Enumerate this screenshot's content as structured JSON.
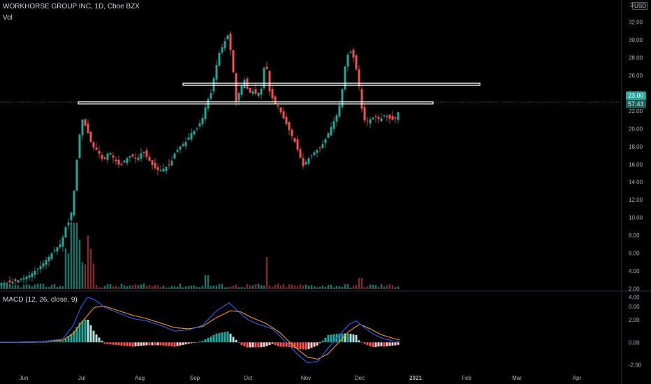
{
  "header": {
    "symbol_line": "WORKHORSE GROUP INC, 1D, Cboe BZX",
    "vol_label": "Vol",
    "macd_label": "MACD (12, 26, close, 9)",
    "currency": "USD",
    "cut_off_axis_label": "3"
  },
  "price_badges": {
    "last_price": "23.00",
    "countdown": "57:43"
  },
  "colors": {
    "up": "#26a69a",
    "down": "#ef5350",
    "macd_line": "#2962ff",
    "signal_line": "#ff9800",
    "hist_pos_strong": "#26a69a",
    "hist_pos_weak": "#b2dfdb",
    "hist_neg_strong": "#ff5252",
    "hist_neg_weak": "#ffcdd2",
    "background": "#000000"
  },
  "chart_data": [
    {
      "type": "candlestick",
      "title": "WORKHORSE GROUP INC, 1D, Cboe BZX",
      "x_axis_ticks": [
        "Jun",
        "Jul",
        "Aug",
        "Sep",
        "Oct",
        "Nov",
        "Dec",
        "2021",
        "Feb",
        "Mar",
        "Apr"
      ],
      "y_axis_ticks": [
        "32.00",
        "30.00",
        "28.00",
        "26.00",
        "24.00",
        "22.00",
        "20.00",
        "18.00",
        "16.00",
        "14.00",
        "12.00",
        "10.00",
        "8.00",
        "6.00",
        "4.00",
        "2.00",
        "0.00"
      ],
      "ylim": [
        0,
        33
      ],
      "last_price": 23.0,
      "horizontal_levels": [
        25.0,
        22.9
      ],
      "series": [
        {
          "name": "price_path",
          "points": [
            [
              0,
              2.6
            ],
            [
              14,
              2.7
            ],
            [
              28,
              3.0
            ],
            [
              42,
              3.5
            ],
            [
              56,
              4.4
            ],
            [
              64,
              5.0
            ],
            [
              72,
              5.8
            ],
            [
              80,
              6.5
            ],
            [
              86,
              7.0
            ],
            [
              90,
              7.8
            ],
            [
              95,
              9.2
            ],
            [
              100,
              9.6
            ],
            [
              104,
              11.5
            ],
            [
              108,
              14.5
            ],
            [
              112,
              18.5
            ],
            [
              118,
              21.0
            ],
            [
              124,
              20.0
            ],
            [
              132,
              18.0
            ],
            [
              140,
              17.5
            ],
            [
              148,
              16.3
            ],
            [
              156,
              17.5
            ],
            [
              164,
              16.5
            ],
            [
              172,
              15.8
            ],
            [
              180,
              16.6
            ],
            [
              188,
              17.0
            ],
            [
              196,
              16.5
            ],
            [
              204,
              17.5
            ],
            [
              212,
              16.6
            ],
            [
              220,
              15.7
            ],
            [
              228,
              15.2
            ],
            [
              236,
              15.6
            ],
            [
              244,
              16.0
            ],
            [
              250,
              17.2
            ],
            [
              258,
              18.0
            ],
            [
              266,
              18.5
            ],
            [
              274,
              19.5
            ],
            [
              282,
              20.0
            ],
            [
              290,
              21.2
            ],
            [
              296,
              23.0
            ],
            [
              302,
              24.0
            ],
            [
              308,
              26.5
            ],
            [
              314,
              28.5
            ],
            [
              320,
              29.5
            ],
            [
              326,
              30.5
            ],
            [
              332,
              28.0
            ],
            [
              338,
              23.0
            ],
            [
              344,
              24.5
            ],
            [
              350,
              25.5
            ],
            [
              356,
              24.0
            ],
            [
              362,
              24.2
            ],
            [
              368,
              23.8
            ],
            [
              374,
              24.5
            ],
            [
              380,
              28.0
            ],
            [
              386,
              24.2
            ],
            [
              392,
              23.0
            ],
            [
              398,
              22.5
            ],
            [
              404,
              21.5
            ],
            [
              410,
              20.5
            ],
            [
              416,
              19.5
            ],
            [
              422,
              18.5
            ],
            [
              428,
              17.2
            ],
            [
              434,
              15.8
            ],
            [
              440,
              16.5
            ],
            [
              446,
              17.0
            ],
            [
              452,
              17.5
            ],
            [
              458,
              17.8
            ],
            [
              464,
              18.5
            ],
            [
              470,
              19.5
            ],
            [
              476,
              20.5
            ],
            [
              482,
              21.5
            ],
            [
              488,
              23.2
            ],
            [
              494,
              27.0
            ],
            [
              500,
              29.0
            ],
            [
              506,
              28.0
            ],
            [
              512,
              26.0
            ],
            [
              516,
              23.5
            ],
            [
              520,
              21.0
            ],
            [
              526,
              20.8
            ],
            [
              532,
              21.2
            ],
            [
              538,
              21.3
            ],
            [
              544,
              21.0
            ],
            [
              550,
              21.5
            ],
            [
              556,
              21.2
            ],
            [
              562,
              21.0
            ],
            [
              568,
              21.2
            ],
            [
              572,
              22.5
            ]
          ]
        }
      ]
    },
    {
      "type": "bar",
      "title": "Vol",
      "series": [
        {
          "name": "volume",
          "values": "relative daily volume bars; peaks at early July and mid October"
        }
      ]
    },
    {
      "type": "line",
      "title": "MACD (12, 26, close, 9)",
      "y_axis_ticks": [
        "4.00",
        "2.00",
        "0.00",
        "-2.00"
      ],
      "ylim": [
        -2.5,
        4.5
      ],
      "series": [
        {
          "name": "macd_line",
          "points": [
            [
              0,
              0.0
            ],
            [
              60,
              0.05
            ],
            [
              90,
              0.3
            ],
            [
              105,
              1.5
            ],
            [
              115,
              3.0
            ],
            [
              125,
              4.0
            ],
            [
              135,
              3.8
            ],
            [
              150,
              3.1
            ],
            [
              170,
              2.6
            ],
            [
              190,
              2.1
            ],
            [
              210,
              1.9
            ],
            [
              230,
              1.5
            ],
            [
              250,
              1.0
            ],
            [
              270,
              1.1
            ],
            [
              290,
              1.5
            ],
            [
              310,
              2.8
            ],
            [
              328,
              3.5
            ],
            [
              340,
              2.8
            ],
            [
              355,
              2.0
            ],
            [
              370,
              1.6
            ],
            [
              390,
              1.2
            ],
            [
              410,
              0.0
            ],
            [
              425,
              -1.0
            ],
            [
              440,
              -1.8
            ],
            [
              455,
              -1.7
            ],
            [
              470,
              -0.5
            ],
            [
              485,
              0.6
            ],
            [
              500,
              1.6
            ],
            [
              510,
              1.9
            ],
            [
              520,
              1.4
            ],
            [
              535,
              0.7
            ],
            [
              550,
              0.3
            ],
            [
              565,
              0.1
            ],
            [
              572,
              0.05
            ]
          ]
        },
        {
          "name": "signal_line",
          "points": [
            [
              0,
              0.0
            ],
            [
              60,
              0.05
            ],
            [
              90,
              0.2
            ],
            [
              105,
              0.8
            ],
            [
              120,
              2.0
            ],
            [
              135,
              3.1
            ],
            [
              150,
              3.2
            ],
            [
              170,
              2.8
            ],
            [
              190,
              2.4
            ],
            [
              210,
              2.1
            ],
            [
              230,
              1.7
            ],
            [
              250,
              1.3
            ],
            [
              270,
              1.2
            ],
            [
              290,
              1.4
            ],
            [
              310,
              2.2
            ],
            [
              330,
              2.8
            ],
            [
              345,
              2.7
            ],
            [
              360,
              2.2
            ],
            [
              380,
              1.7
            ],
            [
              400,
              0.9
            ],
            [
              420,
              -0.3
            ],
            [
              440,
              -1.3
            ],
            [
              455,
              -1.5
            ],
            [
              470,
              -1.0
            ],
            [
              485,
              0.0
            ],
            [
              500,
              1.0
            ],
            [
              515,
              1.6
            ],
            [
              530,
              1.2
            ],
            [
              545,
              0.7
            ],
            [
              560,
              0.4
            ],
            [
              572,
              0.2
            ]
          ]
        }
      ]
    }
  ]
}
